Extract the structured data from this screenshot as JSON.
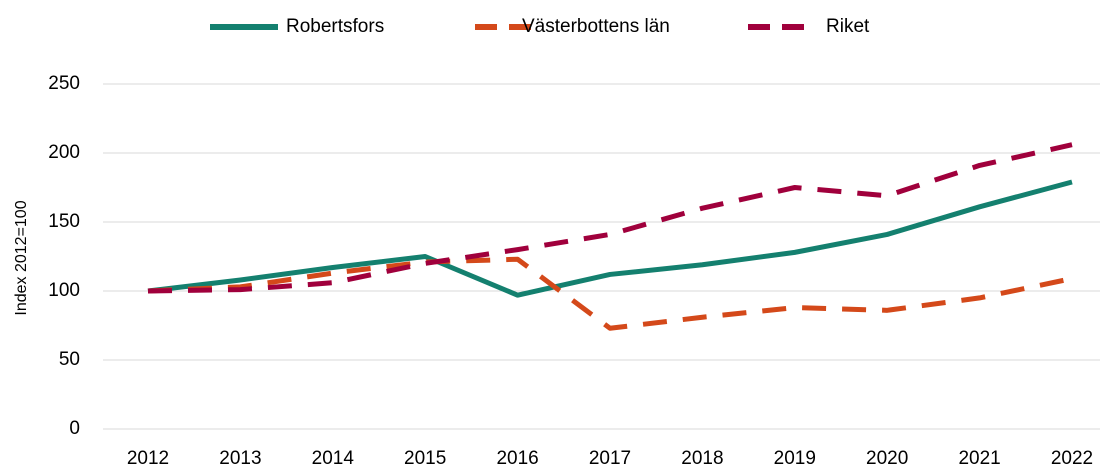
{
  "chart_data": {
    "type": "line",
    "y_label": "Index 2012=100",
    "categories": [
      "2012",
      "2013",
      "2014",
      "2015",
      "2016",
      "2017",
      "2018",
      "2019",
      "2020",
      "2021",
      "2022"
    ],
    "series": [
      {
        "name": "Robertsfors",
        "color": "#14806f",
        "dash": "solid",
        "values": [
          100,
          108,
          117,
          125,
          97,
          112,
          119,
          128,
          141,
          161,
          179
        ]
      },
      {
        "name": "Västerbottens län",
        "color": "#d4491a",
        "dash": "dashed",
        "values": [
          100,
          103,
          113,
          121,
          123,
          73,
          81,
          88,
          86,
          95,
          109
        ]
      },
      {
        "name": "Riket",
        "color": "#a0003c",
        "dash": "dashed",
        "values": [
          100,
          101,
          106,
          120,
          130,
          141,
          160,
          175,
          169,
          191,
          206
        ]
      }
    ],
    "ylim": [
      0,
      250
    ],
    "yticks": [
      0,
      50,
      100,
      150,
      200,
      250
    ],
    "grid": true,
    "legend": "top"
  }
}
